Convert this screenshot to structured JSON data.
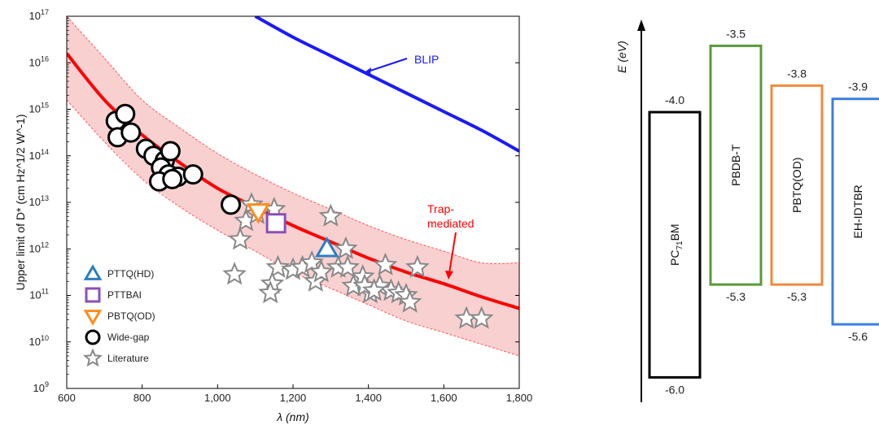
{
  "chart_data": [
    {
      "type": "scatter",
      "xlabel": "λ (nm)",
      "ylabel": "Upper limit of D* (cm Hz^1/2 W^-1)",
      "xlim": [
        600,
        1800
      ],
      "ylim_log10": [
        9,
        17
      ],
      "x_ticks": [
        "600",
        "800",
        "1,000",
        "1,200",
        "1,400",
        "1,600",
        "1,800"
      ],
      "x_tick_values": [
        600,
        800,
        1000,
        1200,
        1400,
        1600,
        1800
      ],
      "y_tick_exponents": [
        9,
        10,
        11,
        12,
        13,
        14,
        15,
        16,
        17
      ],
      "y_tick_base": "10",
      "grid": false,
      "legend_position": "bottom-left",
      "curves": {
        "trap": {
          "label": "Trap-\nmediated",
          "label_lines": [
            "Trap-",
            "mediated"
          ],
          "color": "#ff0000",
          "points": [
            [
              600,
              16.2
            ],
            [
              700,
              15.2
            ],
            [
              800,
              14.45
            ],
            [
              900,
              13.85
            ],
            [
              1000,
              13.3
            ],
            [
              1100,
              12.9
            ],
            [
              1200,
              12.5
            ],
            [
              1300,
              12.15
            ],
            [
              1400,
              11.8
            ],
            [
              1500,
              11.5
            ],
            [
              1600,
              11.25
            ],
            [
              1700,
              10.97
            ],
            [
              1800,
              10.72
            ]
          ]
        },
        "band_upper": [
          [
            600,
            17.0
          ],
          [
            700,
            16.1
          ],
          [
            800,
            15.2
          ],
          [
            900,
            14.6
          ],
          [
            1000,
            14.05
          ],
          [
            1100,
            13.6
          ],
          [
            1200,
            13.2
          ],
          [
            1300,
            12.85
          ],
          [
            1400,
            12.5
          ],
          [
            1500,
            12.2
          ],
          [
            1600,
            11.95
          ],
          [
            1700,
            11.7
          ],
          [
            1800,
            11.7
          ]
        ],
        "band_lower": [
          [
            600,
            15.2
          ],
          [
            700,
            14.3
          ],
          [
            800,
            13.5
          ],
          [
            900,
            12.9
          ],
          [
            1000,
            12.4
          ],
          [
            1100,
            11.95
          ],
          [
            1200,
            11.5
          ],
          [
            1300,
            11.15
          ],
          [
            1400,
            10.8
          ],
          [
            1500,
            10.45
          ],
          [
            1600,
            10.2
          ],
          [
            1700,
            9.95
          ],
          [
            1800,
            9.7
          ]
        ],
        "blip": {
          "label": "BLIP",
          "color": "#1a1aff",
          "points": [
            [
              1100,
              17.0
            ],
            [
              1200,
              16.55
            ],
            [
              1300,
              16.15
            ],
            [
              1400,
              15.75
            ],
            [
              1500,
              15.35
            ],
            [
              1600,
              14.95
            ],
            [
              1700,
              14.55
            ],
            [
              1800,
              14.1
            ]
          ]
        }
      },
      "series": [
        {
          "name": "PTTQ(HD)",
          "marker": "triangle-up",
          "color": "#2a7fc1",
          "points": [
            [
              1290,
              12.0
            ]
          ]
        },
        {
          "name": "PTTBAI",
          "marker": "square",
          "color": "#8a4fb8",
          "points": [
            [
              1155,
              12.55
            ]
          ]
        },
        {
          "name": "PBTQ(OD)",
          "marker": "triangle-down",
          "color": "#ff8c1a",
          "points": [
            [
              1108,
              12.8
            ]
          ]
        },
        {
          "name": "Wide-gap",
          "marker": "circle",
          "color": "#000000",
          "points": [
            [
              730,
              14.75
            ],
            [
              755,
              14.9
            ],
            [
              735,
              14.4
            ],
            [
              770,
              14.5
            ],
            [
              810,
              14.15
            ],
            [
              830,
              14.0
            ],
            [
              860,
              13.9
            ],
            [
              875,
              14.1
            ],
            [
              850,
              13.75
            ],
            [
              870,
              13.6
            ],
            [
              845,
              13.45
            ],
            [
              895,
              13.55
            ],
            [
              935,
              13.6
            ],
            [
              880,
              13.5
            ],
            [
              1035,
              12.95
            ]
          ]
        },
        {
          "name": "Literature",
          "marker": "star",
          "color": "#888888",
          "points": [
            [
              1075,
              12.6
            ],
            [
              1090,
              12.95
            ],
            [
              1105,
              12.75
            ],
            [
              1060,
              12.2
            ],
            [
              1045,
              11.45
            ],
            [
              1150,
              12.85
            ],
            [
              1160,
              11.6
            ],
            [
              1145,
              11.25
            ],
            [
              1140,
              11.05
            ],
            [
              1200,
              11.55
            ],
            [
              1225,
              11.6
            ],
            [
              1250,
              11.7
            ],
            [
              1260,
              11.3
            ],
            [
              1275,
              11.5
            ],
            [
              1300,
              12.7
            ],
            [
              1320,
              11.6
            ],
            [
              1340,
              12.0
            ],
            [
              1360,
              11.2
            ],
            [
              1385,
              11.4
            ],
            [
              1405,
              11.05
            ],
            [
              1430,
              11.2
            ],
            [
              1445,
              11.65
            ],
            [
              1460,
              11.1
            ],
            [
              1480,
              11.05
            ],
            [
              1500,
              11.0
            ],
            [
              1510,
              10.85
            ],
            [
              1530,
              11.6
            ],
            [
              1660,
              10.5
            ],
            [
              1700,
              10.5
            ],
            [
              1345,
              11.6
            ],
            [
              1390,
              11.2
            ],
            [
              1415,
              11.1
            ]
          ]
        }
      ],
      "annotations": {
        "blip_label": "BLIP",
        "trap_label_lines": [
          "Trap-",
          "mediated"
        ]
      }
    },
    {
      "type": "diagram",
      "y_axis_label": "E (eV)",
      "materials": [
        {
          "name": "PC71BM",
          "name_main": "PC",
          "name_sub": "71",
          "name_tail": "BM",
          "homo": "-6.0",
          "lumo": "-4.0",
          "homo_value": -6.0,
          "lumo_value": -4.0,
          "color": "#000000"
        },
        {
          "name": "PBDB-T",
          "homo": "-5.3",
          "lumo": "-3.5",
          "homo_value": -5.3,
          "lumo_value": -3.5,
          "color": "#5a9a3a"
        },
        {
          "name": "PBTQ(OD)",
          "homo": "-5.3",
          "lumo": "-3.8",
          "homo_value": -5.3,
          "lumo_value": -3.8,
          "color": "#f08a3c"
        },
        {
          "name": "EH-IDTBR",
          "homo": "-5.6",
          "lumo": "-3.9",
          "homo_value": -5.6,
          "lumo_value": -3.9,
          "color": "#3a7fe0"
        }
      ]
    }
  ]
}
